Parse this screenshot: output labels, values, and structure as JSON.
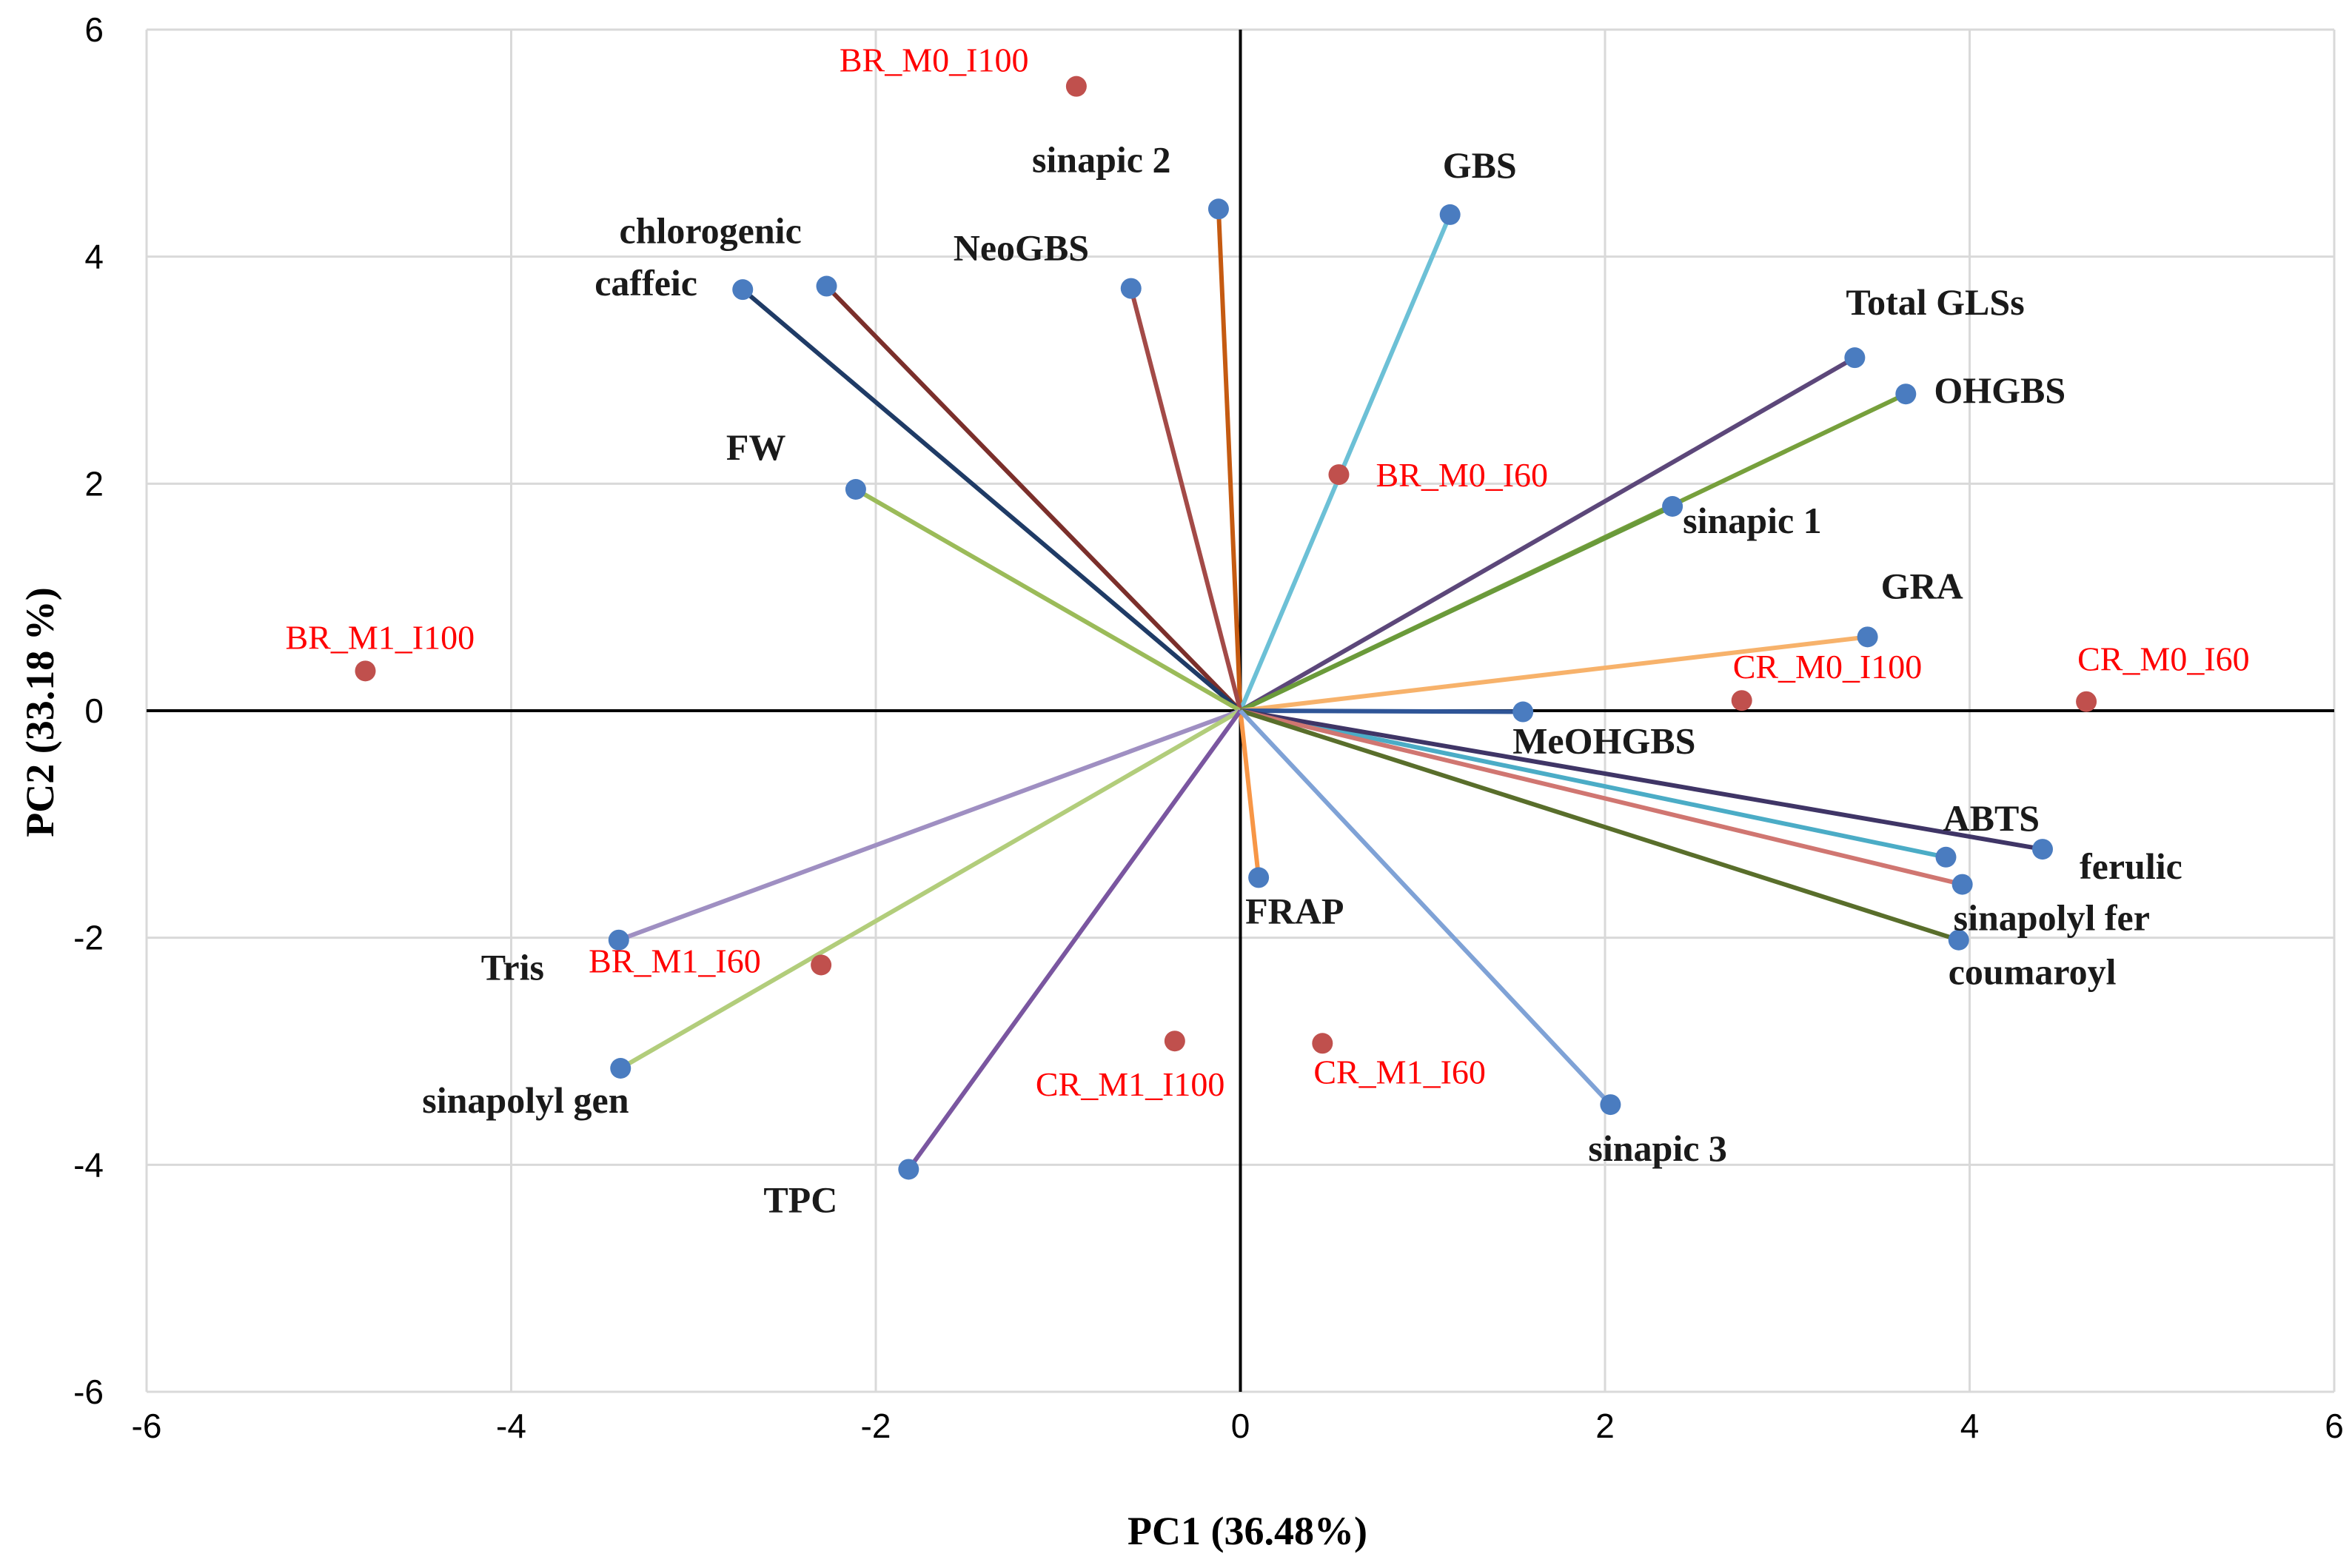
{
  "chart_data": {
    "type": "scatter",
    "subtype": "pca-biplot",
    "title": "",
    "xlabel": "PC1 (36.48%)",
    "ylabel": "PC2 (33.18 %)",
    "xlim": [
      -6,
      6
    ],
    "ylim": [
      -6,
      6
    ],
    "xticks": [
      -6,
      -4,
      -2,
      0,
      2,
      4,
      6
    ],
    "yticks": [
      -6,
      -4,
      -2,
      0,
      2,
      4,
      6
    ],
    "grid": true,
    "legend": "none",
    "colors": {
      "variable_point": "#4a7cc0",
      "observation_point": "#c0504d",
      "observation_label": "#ff0000",
      "variable_label": "#1a1a1a",
      "grid": "#d9d9d9",
      "zero_axes": "#000000"
    },
    "variables": [
      {
        "name": "sinapic 2",
        "x": -0.12,
        "y": 4.42,
        "color": "#c55a11"
      },
      {
        "name": "GBS",
        "x": 1.15,
        "y": 4.37,
        "color": "#6cc0d6"
      },
      {
        "name": "chlorogenic",
        "x": -2.27,
        "y": 3.74,
        "color": "#7b2f2b"
      },
      {
        "name": "caffeic",
        "x": -2.73,
        "y": 3.71,
        "color": "#1f3b66"
      },
      {
        "name": "NeoGBS",
        "x": -0.6,
        "y": 3.72,
        "color": "#a34a47"
      },
      {
        "name": "Total GLSs",
        "x": 3.37,
        "y": 3.11,
        "color": "#5c477a"
      },
      {
        "name": "OHGBS",
        "x": 3.65,
        "y": 2.79,
        "color": "#77a03c"
      },
      {
        "name": "FW",
        "x": -2.11,
        "y": 1.95,
        "color": "#9bbb59"
      },
      {
        "name": "sinapic 1",
        "x": 2.37,
        "y": 1.8,
        "color": "#6a9a3a"
      },
      {
        "name": "GRA",
        "x": 3.44,
        "y": 0.65,
        "color": "#f7b26b"
      },
      {
        "name": "MeOHGBS",
        "x": 1.55,
        "y": -0.01,
        "color": "#2f5597"
      },
      {
        "name": "ABTS",
        "x": 3.87,
        "y": -1.29,
        "color": "#4bacc6"
      },
      {
        "name": "ferulic",
        "x": 4.4,
        "y": -1.22,
        "color": "#3f3566"
      },
      {
        "name": "sinapolyl fer",
        "x": 3.96,
        "y": -1.53,
        "color": "#d07671"
      },
      {
        "name": "coumaroyl",
        "x": 3.94,
        "y": -2.02,
        "color": "#596e2b"
      },
      {
        "name": "FRAP",
        "x": 0.1,
        "y": -1.47,
        "color": "#f79646"
      },
      {
        "name": "Tris",
        "x": -3.41,
        "y": -2.02,
        "color": "#9f8fc2"
      },
      {
        "name": "sinapolyl gen",
        "x": -3.4,
        "y": -3.15,
        "color": "#b2cd7b"
      },
      {
        "name": "TPC",
        "x": -1.82,
        "y": -4.04,
        "color": "#7a56a0"
      },
      {
        "name": "sinapic 3",
        "x": 2.03,
        "y": -3.47,
        "color": "#7fa2d6"
      }
    ],
    "observations": [
      {
        "name": "BR_M0_I100",
        "x": -0.9,
        "y": 5.5
      },
      {
        "name": "BR_M0_I60",
        "x": 0.54,
        "y": 2.08
      },
      {
        "name": "BR_M1_I100",
        "x": -4.8,
        "y": 0.35
      },
      {
        "name": "CR_M0_I100",
        "x": 2.75,
        "y": 0.09
      },
      {
        "name": "CR_M0_I60",
        "x": 4.64,
        "y": 0.08
      },
      {
        "name": "BR_M1_I60",
        "x": -2.3,
        "y": -2.24
      },
      {
        "name": "CR_M1_I100",
        "x": -0.36,
        "y": -2.91
      },
      {
        "name": "CR_M1_I60",
        "x": 0.45,
        "y": -2.93
      }
    ]
  }
}
